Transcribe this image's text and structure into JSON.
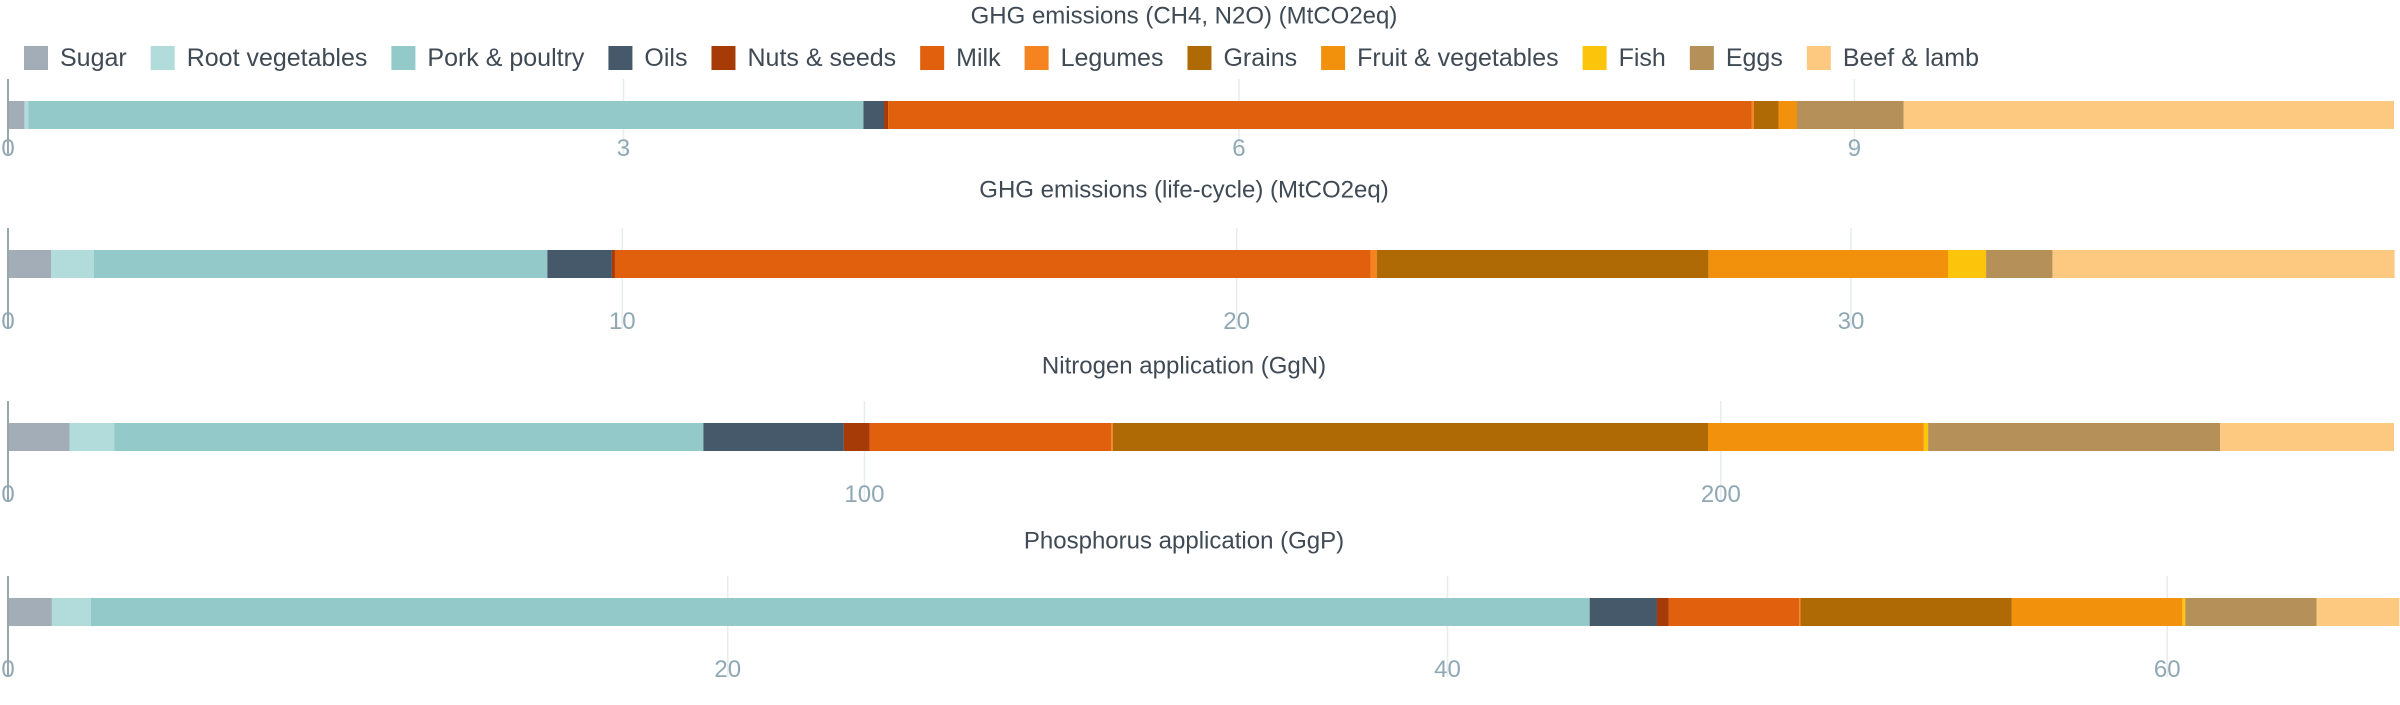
{
  "legend": [
    {
      "name": "Sugar",
      "color": "#a2adb8"
    },
    {
      "name": "Root vegetables",
      "color": "#b2dcdc"
    },
    {
      "name": "Pork & poultry",
      "color": "#93c9c9"
    },
    {
      "name": "Oils",
      "color": "#45596b"
    },
    {
      "name": "Nuts & seeds",
      "color": "#a63b07"
    },
    {
      "name": "Milk",
      "color": "#e0600e"
    },
    {
      "name": "Legumes",
      "color": "#f5831f"
    },
    {
      "name": "Grains",
      "color": "#b06a05"
    },
    {
      "name": "Fruit & vegetables",
      "color": "#f2910c"
    },
    {
      "name": "Fish",
      "color": "#fcc40a"
    },
    {
      "name": "Eggs",
      "color": "#b59059"
    },
    {
      "name": "Beef & lamb",
      "color": "#fdc880"
    }
  ],
  "chart_data": [
    {
      "type": "bar",
      "orientation": "horizontal-stacked",
      "title": "GHG emissions (CH4, N2O) (MtCO2eq)",
      "xlim": [
        0,
        11.63
      ],
      "ticks": [
        0,
        3,
        6,
        9
      ],
      "segments": [
        {
          "name": "Sugar",
          "value": 0.08
        },
        {
          "name": "Root vegetables",
          "value": 0.02
        },
        {
          "name": "Pork & poultry",
          "value": 4.07
        },
        {
          "name": "Oils",
          "value": 0.1
        },
        {
          "name": "Nuts & seeds",
          "value": 0.02
        },
        {
          "name": "Milk",
          "value": 4.21
        },
        {
          "name": "Legumes",
          "value": 0.01
        },
        {
          "name": "Grains",
          "value": 0.12
        },
        {
          "name": "Fruit & vegetables",
          "value": 0.09
        },
        {
          "name": "Fish",
          "value": 0.0
        },
        {
          "name": "Eggs",
          "value": 0.52
        },
        {
          "name": "Beef & lamb",
          "value": 2.39
        }
      ]
    },
    {
      "type": "bar",
      "orientation": "horizontal-stacked",
      "title": "GHG emissions (life-cycle) (MtCO2eq)",
      "xlim": [
        0,
        38.84
      ],
      "ticks": [
        0,
        10,
        20,
        30
      ],
      "segments": [
        {
          "name": "Sugar",
          "value": 0.7
        },
        {
          "name": "Root vegetables",
          "value": 0.7
        },
        {
          "name": "Pork & poultry",
          "value": 7.38
        },
        {
          "name": "Oils",
          "value": 1.05
        },
        {
          "name": "Nuts & seeds",
          "value": 0.05
        },
        {
          "name": "Milk",
          "value": 12.3
        },
        {
          "name": "Legumes",
          "value": 0.1
        },
        {
          "name": "Grains",
          "value": 5.4
        },
        {
          "name": "Fruit & vegetables",
          "value": 3.9
        },
        {
          "name": "Fish",
          "value": 0.62
        },
        {
          "name": "Eggs",
          "value": 1.08
        },
        {
          "name": "Beef & lamb",
          "value": 5.57
        }
      ]
    },
    {
      "type": "bar",
      "orientation": "horizontal-stacked",
      "title": "Nitrogen application (GgN)",
      "xlim": [
        0,
        278.6
      ],
      "ticks": [
        0,
        100,
        200
      ],
      "segments": [
        {
          "name": "Sugar",
          "value": 7.2
        },
        {
          "name": "Root vegetables",
          "value": 5.2
        },
        {
          "name": "Pork & poultry",
          "value": 68.8
        },
        {
          "name": "Oils",
          "value": 16.4
        },
        {
          "name": "Nuts & seeds",
          "value": 3.0
        },
        {
          "name": "Milk",
          "value": 28.2
        },
        {
          "name": "Legumes",
          "value": 0.2
        },
        {
          "name": "Grains",
          "value": 69.5
        },
        {
          "name": "Fruit & vegetables",
          "value": 25.2
        },
        {
          "name": "Fish",
          "value": 0.5
        },
        {
          "name": "Eggs",
          "value": 34.1
        },
        {
          "name": "Beef & lamb",
          "value": 20.3
        }
      ]
    },
    {
      "type": "bar",
      "orientation": "horizontal-stacked",
      "title": "Phosphorus application (GgP)",
      "xlim": [
        0,
        66.3
      ],
      "ticks": [
        0,
        20,
        40,
        60
      ],
      "segments": [
        {
          "name": "Sugar",
          "value": 1.22
        },
        {
          "name": "Root vegetables",
          "value": 1.08
        },
        {
          "name": "Pork & poultry",
          "value": 41.65
        },
        {
          "name": "Oils",
          "value": 1.87
        },
        {
          "name": "Nuts & seeds",
          "value": 0.33
        },
        {
          "name": "Milk",
          "value": 3.62
        },
        {
          "name": "Legumes",
          "value": 0.04
        },
        {
          "name": "Grains",
          "value": 5.87
        },
        {
          "name": "Fruit & vegetables",
          "value": 4.74
        },
        {
          "name": "Fish",
          "value": 0.08
        },
        {
          "name": "Eggs",
          "value": 3.65
        },
        {
          "name": "Beef & lamb",
          "value": 2.3
        }
      ]
    }
  ]
}
